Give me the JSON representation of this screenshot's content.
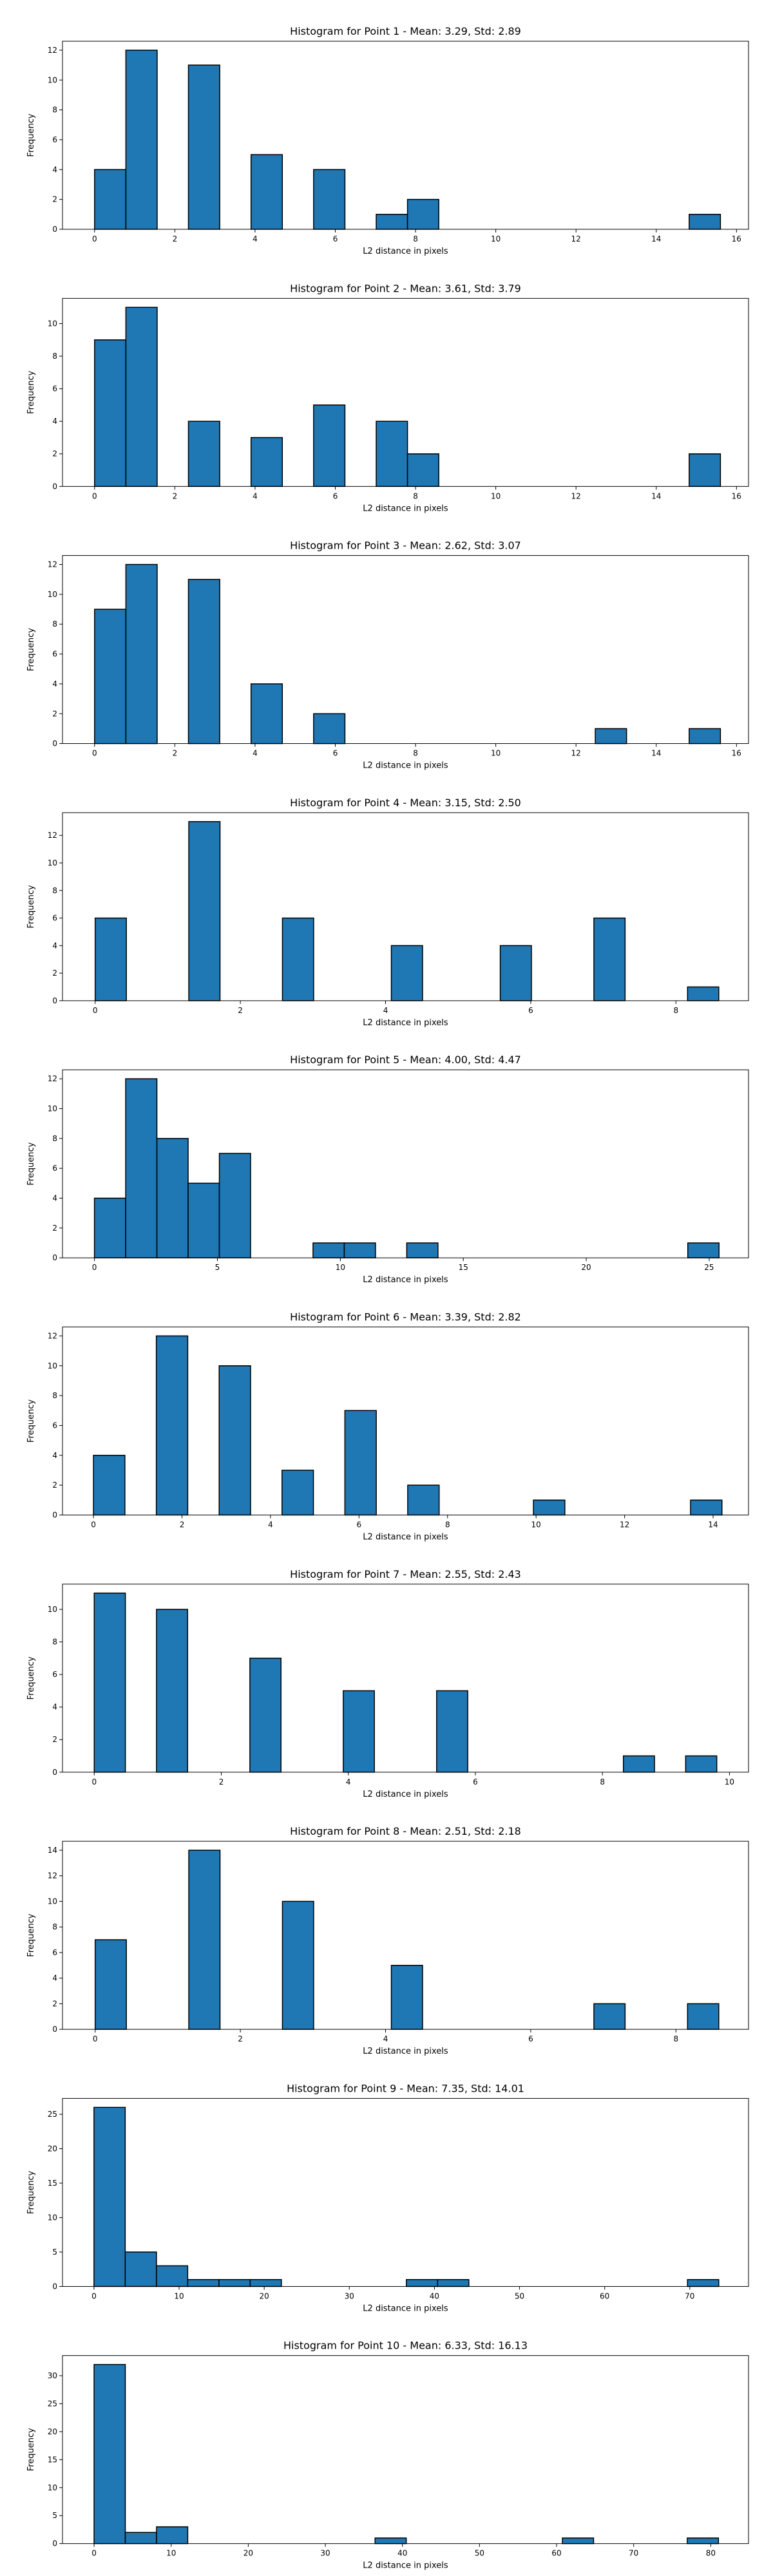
{
  "chart_data": [
    {
      "type": "bar",
      "title": "Histogram for Point 1 - Mean: 3.29, Std: 2.89",
      "xlabel": "L2 distance in pixels",
      "ylabel": "Frequency",
      "xlim": [
        -0.8,
        16.3
      ],
      "ylim": [
        0,
        12.6
      ],
      "xticks": [
        0,
        2,
        4,
        6,
        8,
        10,
        12,
        14,
        16
      ],
      "yticks": [
        0,
        2,
        4,
        6,
        8,
        10,
        12
      ],
      "bars": [
        {
          "x0": 0.0,
          "x1": 0.78,
          "value": 4
        },
        {
          "x0": 0.78,
          "x1": 1.56,
          "value": 12
        },
        {
          "x0": 2.34,
          "x1": 3.12,
          "value": 11
        },
        {
          "x0": 3.9,
          "x1": 4.68,
          "value": 5
        },
        {
          "x0": 5.46,
          "x1": 6.24,
          "value": 4
        },
        {
          "x0": 7.02,
          "x1": 7.8,
          "value": 1
        },
        {
          "x0": 7.8,
          "x1": 8.58,
          "value": 2
        },
        {
          "x0": 14.82,
          "x1": 15.6,
          "value": 1
        }
      ]
    },
    {
      "type": "bar",
      "title": "Histogram for Point 2 - Mean: 3.61, Std: 3.79",
      "xlabel": "L2 distance in pixels",
      "ylabel": "Frequency",
      "xlim": [
        -0.8,
        16.3
      ],
      "ylim": [
        0,
        11.55
      ],
      "xticks": [
        0,
        2,
        4,
        6,
        8,
        10,
        12,
        14,
        16
      ],
      "yticks": [
        0,
        2,
        4,
        6,
        8,
        10
      ],
      "bars": [
        {
          "x0": 0.0,
          "x1": 0.78,
          "value": 9
        },
        {
          "x0": 0.78,
          "x1": 1.56,
          "value": 11
        },
        {
          "x0": 2.34,
          "x1": 3.12,
          "value": 4
        },
        {
          "x0": 3.9,
          "x1": 4.68,
          "value": 3
        },
        {
          "x0": 5.46,
          "x1": 6.24,
          "value": 5
        },
        {
          "x0": 7.02,
          "x1": 7.8,
          "value": 4
        },
        {
          "x0": 7.8,
          "x1": 8.58,
          "value": 2
        },
        {
          "x0": 14.82,
          "x1": 15.6,
          "value": 2
        }
      ]
    },
    {
      "type": "bar",
      "title": "Histogram for Point 3 - Mean: 2.62, Std: 3.07",
      "xlabel": "L2 distance in pixels",
      "ylabel": "Frequency",
      "xlim": [
        -0.8,
        16.3
      ],
      "ylim": [
        0,
        12.6
      ],
      "xticks": [
        0,
        2,
        4,
        6,
        8,
        10,
        12,
        14,
        16
      ],
      "yticks": [
        0,
        2,
        4,
        6,
        8,
        10,
        12
      ],
      "bars": [
        {
          "x0": 0.0,
          "x1": 0.78,
          "value": 9
        },
        {
          "x0": 0.78,
          "x1": 1.56,
          "value": 12
        },
        {
          "x0": 2.34,
          "x1": 3.12,
          "value": 11
        },
        {
          "x0": 3.9,
          "x1": 4.68,
          "value": 4
        },
        {
          "x0": 5.46,
          "x1": 6.24,
          "value": 2
        },
        {
          "x0": 12.48,
          "x1": 13.26,
          "value": 1
        },
        {
          "x0": 14.82,
          "x1": 15.6,
          "value": 1
        }
      ]
    },
    {
      "type": "bar",
      "title": "Histogram for Point 4 - Mean: 3.15, Std: 2.50",
      "xlabel": "L2 distance in pixels",
      "ylabel": "Frequency",
      "xlim": [
        -0.45,
        9.0
      ],
      "ylim": [
        0,
        13.65
      ],
      "xticks": [
        0,
        2,
        4,
        6,
        8
      ],
      "yticks": [
        0,
        2,
        4,
        6,
        8,
        10,
        12
      ],
      "bars": [
        {
          "x0": 0.0,
          "x1": 0.43,
          "value": 6
        },
        {
          "x0": 1.29,
          "x1": 1.72,
          "value": 13
        },
        {
          "x0": 2.58,
          "x1": 3.01,
          "value": 6
        },
        {
          "x0": 4.08,
          "x1": 4.51,
          "value": 4
        },
        {
          "x0": 5.58,
          "x1": 6.01,
          "value": 4
        },
        {
          "x0": 6.87,
          "x1": 7.3,
          "value": 6
        },
        {
          "x0": 8.16,
          "x1": 8.59,
          "value": 1
        }
      ]
    },
    {
      "type": "bar",
      "title": "Histogram for Point 5 - Mean: 4.00, Std: 4.47",
      "xlabel": "L2 distance in pixels",
      "ylabel": "Frequency",
      "xlim": [
        -1.3,
        26.6
      ],
      "ylim": [
        0,
        12.6
      ],
      "xticks": [
        0,
        5,
        10,
        15,
        20,
        25
      ],
      "yticks": [
        0,
        2,
        4,
        6,
        8,
        10,
        12
      ],
      "bars": [
        {
          "x0": 0.0,
          "x1": 1.27,
          "value": 4
        },
        {
          "x0": 1.27,
          "x1": 2.54,
          "value": 12
        },
        {
          "x0": 2.54,
          "x1": 3.81,
          "value": 8
        },
        {
          "x0": 3.81,
          "x1": 5.08,
          "value": 5
        },
        {
          "x0": 5.08,
          "x1": 6.35,
          "value": 7
        },
        {
          "x0": 8.89,
          "x1": 10.16,
          "value": 1
        },
        {
          "x0": 10.16,
          "x1": 11.43,
          "value": 1
        },
        {
          "x0": 12.7,
          "x1": 13.97,
          "value": 1
        },
        {
          "x0": 24.13,
          "x1": 25.4,
          "value": 1
        }
      ]
    },
    {
      "type": "bar",
      "title": "Histogram for Point 6 - Mean: 3.39, Std: 2.82",
      "xlabel": "L2 distance in pixels",
      "ylabel": "Frequency",
      "xlim": [
        -0.7,
        14.8
      ],
      "ylim": [
        0,
        12.6
      ],
      "xticks": [
        0,
        2,
        4,
        6,
        8,
        10,
        12,
        14
      ],
      "yticks": [
        0,
        2,
        4,
        6,
        8,
        10,
        12
      ],
      "bars": [
        {
          "x0": 0.0,
          "x1": 0.71,
          "value": 4
        },
        {
          "x0": 1.42,
          "x1": 2.13,
          "value": 12
        },
        {
          "x0": 2.84,
          "x1": 3.55,
          "value": 10
        },
        {
          "x0": 4.26,
          "x1": 4.97,
          "value": 3
        },
        {
          "x0": 5.68,
          "x1": 6.39,
          "value": 7
        },
        {
          "x0": 7.1,
          "x1": 7.81,
          "value": 2
        },
        {
          "x0": 9.94,
          "x1": 10.65,
          "value": 1
        },
        {
          "x0": 13.49,
          "x1": 14.2,
          "value": 1
        }
      ]
    },
    {
      "type": "bar",
      "title": "Histogram for Point 7 - Mean: 2.55, Std: 2.43",
      "xlabel": "L2 distance in pixels",
      "ylabel": "Frequency",
      "xlim": [
        -0.5,
        10.3
      ],
      "ylim": [
        0,
        11.55
      ],
      "xticks": [
        0,
        2,
        4,
        6,
        8,
        10
      ],
      "yticks": [
        0,
        2,
        4,
        6,
        8,
        10
      ],
      "bars": [
        {
          "x0": 0.0,
          "x1": 0.49,
          "value": 11
        },
        {
          "x0": 0.98,
          "x1": 1.47,
          "value": 10
        },
        {
          "x0": 2.45,
          "x1": 2.94,
          "value": 7
        },
        {
          "x0": 3.92,
          "x1": 4.41,
          "value": 5
        },
        {
          "x0": 5.39,
          "x1": 5.88,
          "value": 5
        },
        {
          "x0": 8.33,
          "x1": 8.82,
          "value": 1
        },
        {
          "x0": 9.31,
          "x1": 9.8,
          "value": 1
        }
      ]
    },
    {
      "type": "bar",
      "title": "Histogram for Point 8 - Mean: 2.51, Std: 2.18",
      "xlabel": "L2 distance in pixels",
      "ylabel": "Frequency",
      "xlim": [
        -0.45,
        9.0
      ],
      "ylim": [
        0,
        14.7
      ],
      "xticks": [
        0,
        2,
        4,
        6,
        8
      ],
      "yticks": [
        0,
        2,
        4,
        6,
        8,
        10,
        12,
        14
      ],
      "bars": [
        {
          "x0": 0.0,
          "x1": 0.43,
          "value": 7
        },
        {
          "x0": 1.29,
          "x1": 1.72,
          "value": 14
        },
        {
          "x0": 2.58,
          "x1": 3.01,
          "value": 10
        },
        {
          "x0": 4.08,
          "x1": 4.51,
          "value": 5
        },
        {
          "x0": 6.87,
          "x1": 7.3,
          "value": 2
        },
        {
          "x0": 8.16,
          "x1": 8.59,
          "value": 2
        }
      ]
    },
    {
      "type": "bar",
      "title": "Histogram for Point 9 - Mean: 7.35, Std: 14.01",
      "xlabel": "L2 distance in pixels",
      "ylabel": "Frequency",
      "xlim": [
        -3.7,
        76.9
      ],
      "ylim": [
        0,
        27.3
      ],
      "xticks": [
        0,
        10,
        20,
        30,
        40,
        50,
        60,
        70
      ],
      "yticks": [
        0,
        5,
        10,
        15,
        20,
        25
      ],
      "bars": [
        {
          "x0": 0.0,
          "x1": 3.67,
          "value": 26
        },
        {
          "x0": 3.67,
          "x1": 7.34,
          "value": 5
        },
        {
          "x0": 7.34,
          "x1": 11.01,
          "value": 3
        },
        {
          "x0": 11.01,
          "x1": 14.68,
          "value": 1
        },
        {
          "x0": 14.68,
          "x1": 18.35,
          "value": 1
        },
        {
          "x0": 18.35,
          "x1": 22.02,
          "value": 1
        },
        {
          "x0": 36.7,
          "x1": 40.37,
          "value": 1
        },
        {
          "x0": 40.37,
          "x1": 44.04,
          "value": 1
        },
        {
          "x0": 69.73,
          "x1": 73.4,
          "value": 1
        }
      ]
    },
    {
      "type": "bar",
      "title": "Histogram for Point 10 - Mean: 6.33, Std: 16.13",
      "xlabel": "L2 distance in pixels",
      "ylabel": "Frequency",
      "xlim": [
        -4.1,
        84.9
      ],
      "ylim": [
        0,
        33.6
      ],
      "xticks": [
        0,
        10,
        20,
        30,
        40,
        50,
        60,
        70,
        80
      ],
      "yticks": [
        0,
        5,
        10,
        15,
        20,
        25,
        30
      ],
      "bars": [
        {
          "x0": 0.0,
          "x1": 4.05,
          "value": 32
        },
        {
          "x0": 4.05,
          "x1": 8.1,
          "value": 2
        },
        {
          "x0": 8.1,
          "x1": 12.15,
          "value": 3
        },
        {
          "x0": 36.45,
          "x1": 40.5,
          "value": 1
        },
        {
          "x0": 60.75,
          "x1": 64.8,
          "value": 1
        },
        {
          "x0": 76.95,
          "x1": 81.0,
          "value": 1
        }
      ]
    }
  ]
}
